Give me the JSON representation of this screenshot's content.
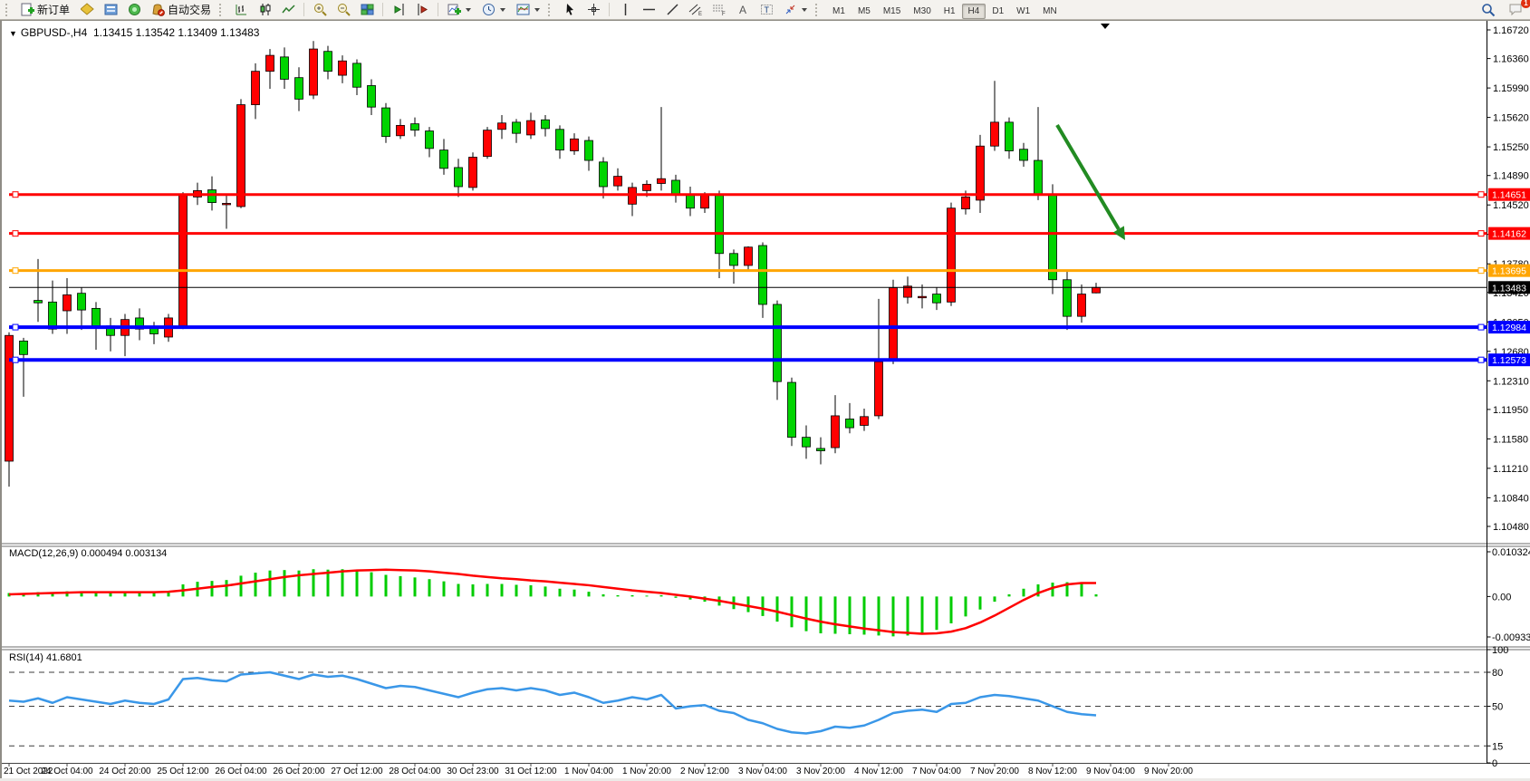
{
  "toolbar": {
    "new_order_label": "新订单",
    "auto_trading_label": "自动交易",
    "timeframes": [
      {
        "label": "M1",
        "active": false
      },
      {
        "label": "M5",
        "active": false
      },
      {
        "label": "M15",
        "active": false
      },
      {
        "label": "M30",
        "active": false
      },
      {
        "label": "H1",
        "active": false
      },
      {
        "label": "H4",
        "active": true
      },
      {
        "label": "D1",
        "active": false
      },
      {
        "label": "W1",
        "active": false
      },
      {
        "label": "MN",
        "active": false
      }
    ],
    "notification_count": "1"
  },
  "colors": {
    "bull": "#ff0000",
    "bear": "#00d400",
    "macd_hist": "#00cc00",
    "macd_signal": "#ff0000",
    "rsi_line": "#3a97e8",
    "line_red": "#ff0000",
    "line_orange": "#ffa500",
    "line_blue": "#0000ff",
    "line_black": "#000000",
    "arrow_green": "#228b22"
  },
  "chart_data": {
    "type": "candlestick",
    "symbol_title": "GBPUSD-,H4",
    "ohlc_display": "1.13415 1.13542 1.13409 1.13483",
    "price_axis_ticks": [
      "1.16720",
      "1.16360",
      "1.15990",
      "1.15620",
      "1.15250",
      "1.14890",
      "1.14520",
      "1.14150",
      "1.13780",
      "1.13420",
      "1.13050",
      "1.12680",
      "1.12310",
      "1.11950",
      "1.11580",
      "1.11210",
      "1.10840",
      "1.10480"
    ],
    "hlines": [
      {
        "price": 1.14651,
        "label": "1.14651",
        "color": "#ff0000",
        "width": 3,
        "handles": true
      },
      {
        "price": 1.14162,
        "label": "1.14162",
        "color": "#ff0000",
        "width": 3,
        "handles": true
      },
      {
        "price": 1.13695,
        "label": "1.13695",
        "color": "#ffa500",
        "width": 3,
        "handles": true
      },
      {
        "price": 1.13483,
        "label": "1.13483",
        "color": "#000000",
        "width": 1,
        "handles": false
      },
      {
        "price": 1.12984,
        "label": "1.12984",
        "color": "#0000ff",
        "width": 4,
        "handles": true
      },
      {
        "price": 1.12573,
        "label": "1.12573",
        "color": "#0000ff",
        "width": 4,
        "handles": true
      }
    ],
    "candles": [
      [
        1.113,
        1.1292,
        1.1098,
        1.1288
      ],
      [
        1.1281,
        1.1285,
        1.1211,
        1.1264
      ],
      [
        1.1332,
        1.1384,
        1.1305,
        1.1329
      ],
      [
        1.133,
        1.1357,
        1.129,
        1.1296
      ],
      [
        1.1319,
        1.136,
        1.129,
        1.1339
      ],
      [
        1.1341,
        1.1348,
        1.1295,
        1.132
      ],
      [
        1.1322,
        1.133,
        1.127,
        1.13
      ],
      [
        1.13,
        1.131,
        1.1268,
        1.1288
      ],
      [
        1.1288,
        1.1315,
        1.1262,
        1.1308
      ],
      [
        1.131,
        1.1322,
        1.1282,
        1.1296
      ],
      [
        1.1297,
        1.1305,
        1.1277,
        1.129
      ],
      [
        1.1286,
        1.1315,
        1.128,
        1.131
      ],
      [
        1.13,
        1.1468,
        1.1296,
        1.1464
      ],
      [
        1.1462,
        1.148,
        1.1452,
        1.147
      ],
      [
        1.1471,
        1.1488,
        1.1445,
        1.1455
      ],
      [
        1.1454,
        1.1466,
        1.1422,
        1.1454
      ],
      [
        1.145,
        1.1585,
        1.1448,
        1.1578
      ],
      [
        1.1578,
        1.163,
        1.156,
        1.162
      ],
      [
        1.162,
        1.1648,
        1.1598,
        1.164
      ],
      [
        1.1638,
        1.165,
        1.1598,
        1.161
      ],
      [
        1.1612,
        1.1625,
        1.157,
        1.1585
      ],
      [
        1.159,
        1.1658,
        1.1585,
        1.1648
      ],
      [
        1.1645,
        1.1652,
        1.161,
        1.162
      ],
      [
        1.1615,
        1.164,
        1.1605,
        1.1633
      ],
      [
        1.163,
        1.1635,
        1.159,
        1.16
      ],
      [
        1.1602,
        1.161,
        1.1565,
        1.1575
      ],
      [
        1.1574,
        1.158,
        1.153,
        1.1538
      ],
      [
        1.1539,
        1.156,
        1.1535,
        1.1552
      ],
      [
        1.1554,
        1.1562,
        1.1538,
        1.1546
      ],
      [
        1.1545,
        1.155,
        1.1512,
        1.1523
      ],
      [
        1.1521,
        1.1535,
        1.149,
        1.1498
      ],
      [
        1.1499,
        1.151,
        1.1462,
        1.1475
      ],
      [
        1.1474,
        1.1518,
        1.147,
        1.1512
      ],
      [
        1.1513,
        1.155,
        1.151,
        1.1546
      ],
      [
        1.1547,
        1.1565,
        1.1535,
        1.1555
      ],
      [
        1.1556,
        1.156,
        1.153,
        1.1542
      ],
      [
        1.154,
        1.1568,
        1.1535,
        1.1558
      ],
      [
        1.1559,
        1.1565,
        1.1538,
        1.1548
      ],
      [
        1.1547,
        1.1552,
        1.151,
        1.1521
      ],
      [
        1.152,
        1.1542,
        1.1515,
        1.1535
      ],
      [
        1.1533,
        1.1538,
        1.1495,
        1.1508
      ],
      [
        1.1506,
        1.1512,
        1.146,
        1.1475
      ],
      [
        1.1476,
        1.1498,
        1.147,
        1.1488
      ],
      [
        1.1453,
        1.148,
        1.1438,
        1.1474
      ],
      [
        1.147,
        1.1483,
        1.1462,
        1.1478
      ],
      [
        1.1479,
        1.1575,
        1.147,
        1.1485
      ],
      [
        1.1483,
        1.149,
        1.1455,
        1.1465
      ],
      [
        1.1465,
        1.1475,
        1.1438,
        1.1448
      ],
      [
        1.1448,
        1.1468,
        1.1442,
        1.1465
      ],
      [
        1.1465,
        1.147,
        1.136,
        1.1391
      ],
      [
        1.1391,
        1.1396,
        1.1353,
        1.1376
      ],
      [
        1.1376,
        1.14,
        1.137,
        1.1399
      ],
      [
        1.1401,
        1.1405,
        1.131,
        1.1327
      ],
      [
        1.1327,
        1.1332,
        1.1207,
        1.123
      ],
      [
        1.1229,
        1.1235,
        1.1149,
        1.116
      ],
      [
        1.116,
        1.1175,
        1.1133,
        1.1148
      ],
      [
        1.1146,
        1.116,
        1.1126,
        1.1143
      ],
      [
        1.1147,
        1.1213,
        1.114,
        1.1187
      ],
      [
        1.1183,
        1.1203,
        1.1165,
        1.1172
      ],
      [
        1.1175,
        1.1196,
        1.1168,
        1.1186
      ],
      [
        1.1187,
        1.1334,
        1.1183,
        1.1255
      ],
      [
        1.1257,
        1.1358,
        1.1252,
        1.1348
      ],
      [
        1.1336,
        1.1362,
        1.1328,
        1.135
      ],
      [
        1.1337,
        1.1352,
        1.1322,
        1.1337
      ],
      [
        1.134,
        1.1348,
        1.132,
        1.1329
      ],
      [
        1.133,
        1.1455,
        1.1325,
        1.1448
      ],
      [
        1.1447,
        1.147,
        1.144,
        1.1462
      ],
      [
        1.1458,
        1.154,
        1.1442,
        1.1526
      ],
      [
        1.1526,
        1.1608,
        1.152,
        1.1556
      ],
      [
        1.1556,
        1.1562,
        1.151,
        1.152
      ],
      [
        1.1522,
        1.153,
        1.15,
        1.1508
      ],
      [
        1.1508,
        1.1575,
        1.1458,
        1.1465
      ],
      [
        1.1465,
        1.1478,
        1.134,
        1.1358
      ],
      [
        1.1358,
        1.137,
        1.1295,
        1.1312
      ],
      [
        1.1312,
        1.1352,
        1.1304,
        1.134
      ],
      [
        1.13415,
        1.13542,
        1.13409,
        1.13483
      ]
    ],
    "dates": [
      "21 Oct 2022",
      "24 Oct 04:00",
      "24 Oct 20:00",
      "25 Oct 12:00",
      "26 Oct 04:00",
      "26 Oct 20:00",
      "27 Oct 12:00",
      "28 Oct 04:00",
      "30 Oct 23:00",
      "31 Oct 12:00",
      "1 Nov 04:00",
      "1 Nov 20:00",
      "2 Nov 12:00",
      "3 Nov 04:00",
      "3 Nov 20:00",
      "4 Nov 12:00",
      "7 Nov 04:00",
      "7 Nov 20:00",
      "8 Nov 12:00",
      "9 Nov 04:00",
      "9 Nov 20:00"
    ],
    "macd": {
      "label": "MACD(12,26,9)",
      "values_display": "0.000494 0.003134",
      "ticks": [
        {
          "label": "0.010324",
          "v": 0.010324
        },
        {
          "label": "0.00",
          "v": 0
        },
        {
          "label": "-0.009332",
          "v": -0.009332
        }
      ],
      "hist": [
        0.0008,
        0.0006,
        0.001,
        0.0009,
        0.0012,
        0.0011,
        0.001,
        0.0009,
        0.0011,
        0.001,
        0.0009,
        0.0012,
        0.0028,
        0.0034,
        0.0036,
        0.0038,
        0.0048,
        0.0055,
        0.006,
        0.0061,
        0.006,
        0.0063,
        0.0062,
        0.0063,
        0.006,
        0.0056,
        0.005,
        0.0047,
        0.0044,
        0.004,
        0.0035,
        0.0029,
        0.0028,
        0.0029,
        0.0029,
        0.0027,
        0.0026,
        0.0023,
        0.0018,
        0.0016,
        0.0011,
        0.0005,
        0.0003,
        0.0003,
        0.0002,
        0.0003,
        -0.0003,
        -0.0007,
        -0.0012,
        -0.0021,
        -0.0029,
        -0.0036,
        -0.0045,
        -0.0058,
        -0.0071,
        -0.008,
        -0.0085,
        -0.0086,
        -0.0087,
        -0.0088,
        -0.009,
        -0.0092,
        -0.009,
        -0.0085,
        -0.0077,
        -0.0062,
        -0.0046,
        -0.003,
        -0.0012,
        0.0005,
        0.0018,
        0.0028,
        0.0032,
        0.0033,
        0.003,
        0.0005
      ],
      "signal": [
        0.0005,
        0.0006,
        0.0007,
        0.0008,
        0.0009,
        0.001,
        0.001,
        0.001,
        0.001,
        0.001,
        0.001,
        0.0011,
        0.0014,
        0.0018,
        0.0022,
        0.0025,
        0.003,
        0.0035,
        0.004,
        0.0045,
        0.0049,
        0.0052,
        0.0055,
        0.0058,
        0.006,
        0.0061,
        0.0062,
        0.0061,
        0.006,
        0.0058,
        0.0055,
        0.0052,
        0.0048,
        0.0045,
        0.0042,
        0.004,
        0.0037,
        0.0035,
        0.0032,
        0.0029,
        0.0026,
        0.0022,
        0.0018,
        0.0014,
        0.0011,
        0.0008,
        0.0004,
        0.0,
        -0.0005,
        -0.001,
        -0.0016,
        -0.0022,
        -0.0028,
        -0.0035,
        -0.0043,
        -0.0051,
        -0.0058,
        -0.0064,
        -0.0069,
        -0.0074,
        -0.0078,
        -0.0082,
        -0.0084,
        -0.0086,
        -0.0085,
        -0.0081,
        -0.0073,
        -0.006,
        -0.0044,
        -0.0026,
        -0.0008,
        0.0008,
        0.002,
        0.0028,
        0.0031,
        0.0031
      ]
    },
    "rsi": {
      "label": "RSI(14)",
      "value_display": "41.6801",
      "ticks": [
        {
          "label": "100",
          "v": 100
        },
        {
          "label": "80",
          "v": 80
        },
        {
          "label": "50",
          "v": 50
        },
        {
          "label": "15",
          "v": 15
        },
        {
          "label": "0",
          "v": 0
        }
      ],
      "levels": [
        80,
        50,
        15
      ],
      "series": [
        55,
        54,
        57,
        53,
        58,
        56,
        54,
        52,
        55,
        53,
        52,
        56,
        74,
        75,
        73,
        72,
        78,
        79,
        80,
        77,
        74,
        78,
        76,
        77,
        74,
        70,
        66,
        68,
        67,
        64,
        61,
        58,
        62,
        65,
        66,
        64,
        66,
        64,
        60,
        62,
        58,
        53,
        55,
        58,
        56,
        60,
        48,
        50,
        51,
        46,
        44,
        38,
        35,
        30,
        27,
        26,
        28,
        32,
        31,
        33,
        38,
        44,
        46,
        47,
        45,
        52,
        53,
        58,
        60,
        59,
        57,
        55,
        50,
        45,
        43,
        42
      ]
    },
    "arrow": {
      "from": [
        1165,
        115
      ],
      "to": [
        1240,
        242
      ]
    }
  }
}
